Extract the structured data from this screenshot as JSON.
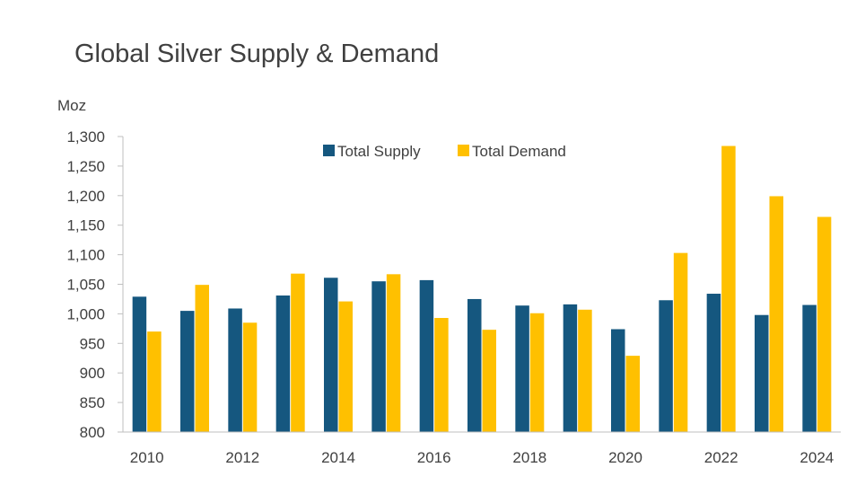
{
  "chart_data": {
    "type": "bar",
    "title": "Global Silver Supply & Demand",
    "ylabel": "Moz",
    "xlabel": "",
    "ylim": [
      800,
      1300
    ],
    "yticks": [
      800,
      850,
      900,
      950,
      1000,
      1050,
      1100,
      1150,
      1200,
      1250,
      1300
    ],
    "ytick_labels": [
      "800",
      "850",
      "900",
      "950",
      "1,000",
      "1,050",
      "1,100",
      "1,150",
      "1,200",
      "1,250",
      "1,300"
    ],
    "categories": [
      "2010",
      "2011",
      "2012",
      "2013",
      "2014",
      "2015",
      "2016",
      "2017",
      "2018",
      "2019",
      "2020",
      "2021",
      "2022",
      "2023",
      "2024"
    ],
    "xtick_labels": [
      "2010",
      "",
      "2012",
      "",
      "2014",
      "",
      "2016",
      "",
      "2018",
      "",
      "2020",
      "",
      "2022",
      "",
      "2024"
    ],
    "series": [
      {
        "name": "Total Supply",
        "color": "#15577f",
        "values": [
          1029,
          1005,
          1009,
          1031,
          1061,
          1055,
          1057,
          1025,
          1014,
          1016,
          974,
          1023,
          1034,
          998,
          1015
        ]
      },
      {
        "name": "Total Demand",
        "color": "#ffc000",
        "values": [
          970,
          1049,
          985,
          1068,
          1021,
          1067,
          993,
          973,
          1001,
          1007,
          929,
          1103,
          1284,
          1199,
          1164
        ]
      }
    ],
    "legend_position": "top-center",
    "grid": false
  }
}
